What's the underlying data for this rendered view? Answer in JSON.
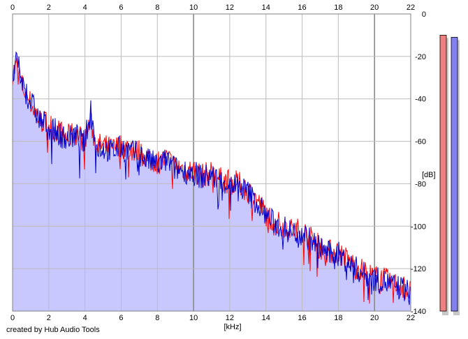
{
  "chart_data": {
    "type": "area",
    "xlabel": "[kHz]",
    "ylabel": "[dB]",
    "xlim": [
      0,
      22
    ],
    "ylim": [
      -140,
      0
    ],
    "x_ticks": [
      0,
      2,
      4,
      6,
      8,
      10,
      12,
      14,
      16,
      18,
      20,
      22
    ],
    "x_tick_labels": [
      "0",
      "2",
      "4",
      "6",
      "8",
      "10",
      "12",
      "14",
      "16",
      "18",
      "20",
      "22"
    ],
    "y_ticks": [
      0,
      -20,
      -40,
      -60,
      -80,
      -100,
      -120,
      -140
    ],
    "y_tick_labels": [
      "0",
      "-20",
      "-40",
      "-60",
      "-80",
      "-100",
      "-120",
      "-140"
    ],
    "grid": true,
    "series": [
      {
        "color": "#ff0000",
        "x": [
          0.0,
          0.25,
          0.5,
          0.75,
          1.0,
          1.5,
          2.0,
          2.5,
          3.0,
          3.5,
          4.0,
          4.3,
          4.6,
          5.0,
          5.5,
          6.0,
          6.5,
          7.0,
          7.5,
          8.0,
          8.5,
          9.0,
          9.5,
          10.0,
          10.5,
          11.0,
          11.5,
          12.0,
          12.5,
          13.0,
          13.5,
          14.0,
          14.5,
          15.0,
          15.5,
          16.0,
          16.5,
          17.0,
          17.5,
          18.0,
          18.5,
          19.0,
          19.5,
          20.0,
          20.5,
          21.0,
          21.5,
          22.0
        ],
        "values": [
          -28,
          -24,
          -33,
          -38,
          -42,
          -50,
          -52,
          -55,
          -58,
          -56,
          -60,
          -50,
          -62,
          -62,
          -64,
          -62,
          -64,
          -65,
          -68,
          -70,
          -68,
          -72,
          -73,
          -74,
          -76,
          -75,
          -78,
          -79,
          -80,
          -83,
          -88,
          -94,
          -98,
          -100,
          -102,
          -102,
          -106,
          -110,
          -112,
          -112,
          -116,
          -119,
          -122,
          -124,
          -125,
          -127,
          -128,
          -131
        ]
      },
      {
        "color": "#0000cc",
        "x": [
          0.0,
          0.25,
          0.5,
          0.75,
          1.0,
          1.5,
          2.0,
          2.5,
          3.0,
          3.5,
          4.0,
          4.3,
          4.6,
          5.0,
          5.5,
          6.0,
          6.5,
          7.0,
          7.5,
          8.0,
          8.5,
          9.0,
          9.5,
          10.0,
          10.5,
          11.0,
          11.5,
          12.0,
          12.5,
          13.0,
          13.5,
          14.0,
          14.5,
          15.0,
          15.5,
          16.0,
          16.5,
          17.0,
          17.5,
          18.0,
          18.5,
          19.0,
          19.5,
          20.0,
          20.5,
          21.0,
          21.5,
          22.0
        ],
        "values": [
          -30,
          -22,
          -32,
          -37,
          -41,
          -50,
          -53,
          -56,
          -59,
          -57,
          -61,
          -43,
          -63,
          -63,
          -65,
          -63,
          -65,
          -66,
          -69,
          -71,
          -69,
          -73,
          -74,
          -75,
          -77,
          -76,
          -79,
          -80,
          -81,
          -84,
          -89,
          -95,
          -99,
          -101,
          -103,
          -103,
          -107,
          -110,
          -113,
          -113,
          -117,
          -120,
          -123,
          -125,
          -126,
          -128,
          -129,
          -132
        ]
      }
    ],
    "level_meters": [
      {
        "color": "#f08080",
        "level_db": -10
      },
      {
        "color": "#8080f0",
        "level_db": -11
      }
    ]
  },
  "footer": {
    "credit": "created by Hub Audio Tools"
  },
  "colors": {
    "fill": "#c8c8ff",
    "grid": "#bcbcbc",
    "grid_bold": "#8a8a8a",
    "frame": "#808080"
  }
}
